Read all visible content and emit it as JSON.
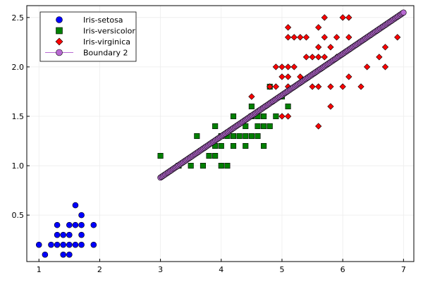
{
  "chart_data": {
    "type": "scatter",
    "title": "",
    "xlabel": "",
    "ylabel": "",
    "xlim": [
      0.8,
      7.17
    ],
    "ylim": [
      0.03,
      2.62
    ],
    "xticks": [
      1,
      2,
      3,
      4,
      5,
      6,
      7
    ],
    "yticks": [
      0.5,
      1.0,
      1.5,
      2.0,
      2.5
    ],
    "xtick_labels": [
      "1",
      "2",
      "3",
      "4",
      "5",
      "6",
      "7"
    ],
    "ytick_labels": [
      "0.5",
      "1.0",
      "1.5",
      "2.0",
      "2.5"
    ],
    "grid": true,
    "legend_position": "top-left",
    "series": [
      {
        "name": "Iris-setosa",
        "marker": "circle",
        "color": "#0000ff",
        "points": [
          [
            1.0,
            0.2
          ],
          [
            1.1,
            0.1
          ],
          [
            1.2,
            0.2
          ],
          [
            1.3,
            0.2
          ],
          [
            1.3,
            0.3
          ],
          [
            1.3,
            0.4
          ],
          [
            1.4,
            0.1
          ],
          [
            1.4,
            0.2
          ],
          [
            1.4,
            0.3
          ],
          [
            1.5,
            0.1
          ],
          [
            1.5,
            0.2
          ],
          [
            1.5,
            0.3
          ],
          [
            1.5,
            0.4
          ],
          [
            1.6,
            0.2
          ],
          [
            1.6,
            0.4
          ],
          [
            1.6,
            0.6
          ],
          [
            1.7,
            0.2
          ],
          [
            1.7,
            0.3
          ],
          [
            1.7,
            0.4
          ],
          [
            1.7,
            0.5
          ],
          [
            1.9,
            0.2
          ],
          [
            1.9,
            0.4
          ]
        ]
      },
      {
        "name": "Iris-versicolor",
        "marker": "square",
        "color": "#008000",
        "points": [
          [
            3.0,
            1.1
          ],
          [
            3.3,
            1.0
          ],
          [
            3.5,
            1.0
          ],
          [
            3.6,
            1.3
          ],
          [
            3.7,
            1.0
          ],
          [
            3.8,
            1.1
          ],
          [
            3.9,
            1.1
          ],
          [
            3.9,
            1.2
          ],
          [
            3.9,
            1.4
          ],
          [
            4.0,
            1.0
          ],
          [
            4.0,
            1.2
          ],
          [
            4.0,
            1.3
          ],
          [
            4.1,
            1.0
          ],
          [
            4.1,
            1.3
          ],
          [
            4.2,
            1.2
          ],
          [
            4.2,
            1.3
          ],
          [
            4.2,
            1.5
          ],
          [
            4.3,
            1.3
          ],
          [
            4.4,
            1.2
          ],
          [
            4.4,
            1.3
          ],
          [
            4.4,
            1.4
          ],
          [
            4.5,
            1.3
          ],
          [
            4.5,
            1.5
          ],
          [
            4.5,
            1.6
          ],
          [
            4.6,
            1.3
          ],
          [
            4.6,
            1.4
          ],
          [
            4.6,
            1.5
          ],
          [
            4.7,
            1.2
          ],
          [
            4.7,
            1.4
          ],
          [
            4.7,
            1.5
          ],
          [
            4.8,
            1.4
          ],
          [
            4.8,
            1.8
          ],
          [
            4.9,
            1.5
          ],
          [
            5.0,
            1.7
          ],
          [
            5.1,
            1.6
          ]
        ]
      },
      {
        "name": "Iris-virginica",
        "marker": "diamond",
        "color": "#ff0000",
        "points": [
          [
            4.5,
            1.7
          ],
          [
            4.8,
            1.8
          ],
          [
            4.9,
            1.8
          ],
          [
            4.9,
            2.0
          ],
          [
            5.0,
            1.5
          ],
          [
            5.0,
            1.9
          ],
          [
            5.0,
            2.0
          ],
          [
            5.1,
            1.5
          ],
          [
            5.1,
            1.8
          ],
          [
            5.1,
            1.9
          ],
          [
            5.1,
            2.0
          ],
          [
            5.1,
            2.3
          ],
          [
            5.1,
            2.4
          ],
          [
            5.2,
            2.0
          ],
          [
            5.2,
            2.3
          ],
          [
            5.3,
            1.9
          ],
          [
            5.3,
            2.3
          ],
          [
            5.4,
            2.1
          ],
          [
            5.4,
            2.3
          ],
          [
            5.5,
            1.8
          ],
          [
            5.5,
            2.1
          ],
          [
            5.6,
            1.4
          ],
          [
            5.6,
            1.8
          ],
          [
            5.6,
            2.1
          ],
          [
            5.6,
            2.2
          ],
          [
            5.6,
            2.4
          ],
          [
            5.7,
            2.1
          ],
          [
            5.7,
            2.3
          ],
          [
            5.7,
            2.5
          ],
          [
            5.8,
            1.6
          ],
          [
            5.8,
            1.8
          ],
          [
            5.8,
            2.2
          ],
          [
            5.9,
            2.1
          ],
          [
            5.9,
            2.3
          ],
          [
            6.0,
            1.8
          ],
          [
            6.0,
            2.5
          ],
          [
            6.1,
            1.9
          ],
          [
            6.1,
            2.3
          ],
          [
            6.1,
            2.5
          ],
          [
            6.3,
            1.8
          ],
          [
            6.4,
            2.0
          ],
          [
            6.6,
            2.1
          ],
          [
            6.7,
            2.0
          ],
          [
            6.7,
            2.2
          ],
          [
            6.9,
            2.3
          ]
        ]
      },
      {
        "name": "Boundary 2",
        "marker": "circle-line",
        "color": "#b86ad2",
        "x_start": 3.0,
        "x_end": 7.0,
        "y_start": 0.88,
        "y_end": 2.55,
        "n_points": 200
      }
    ]
  }
}
